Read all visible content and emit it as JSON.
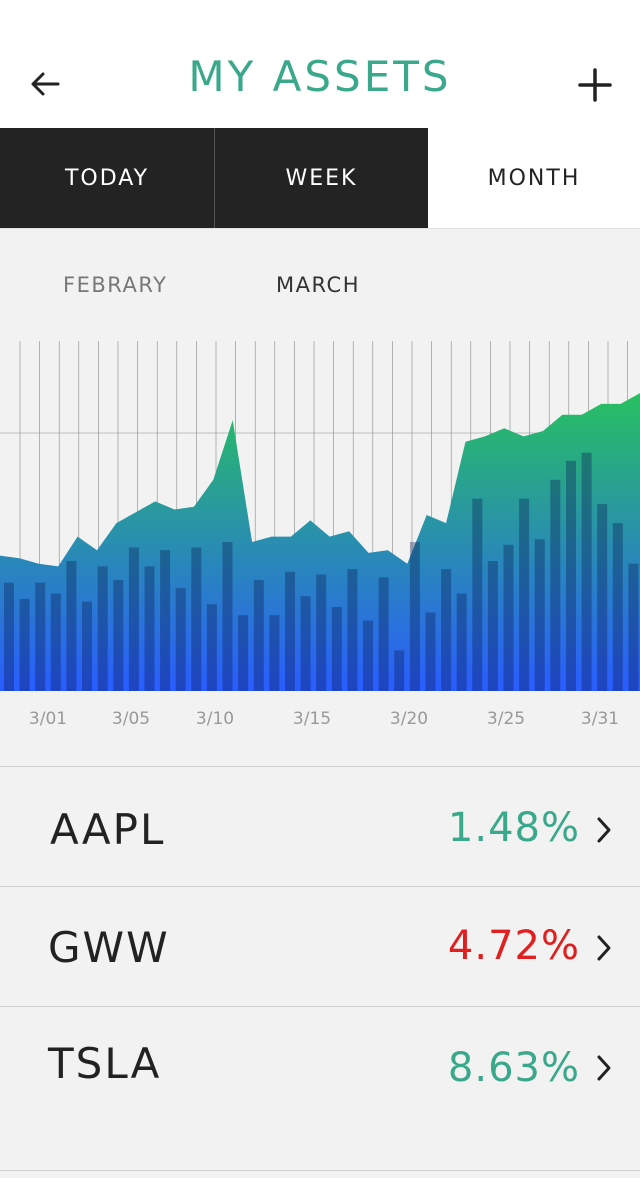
{
  "header": {
    "title": "MY ASSETS",
    "back_icon": "arrow-left-icon",
    "add_icon": "plus-icon"
  },
  "tabs": [
    {
      "label": "TODAY",
      "active": false
    },
    {
      "label": "WEEK",
      "active": false
    },
    {
      "label": "MONTH",
      "active": true
    }
  ],
  "months": {
    "prev": "FEBRARY",
    "current": "MARCH"
  },
  "colors": {
    "accent": "#3aa88b",
    "positive": "#3aa88b",
    "negative": "#e02020",
    "area_top": "#2ab56a",
    "area_bottom": "#2a5cff"
  },
  "chart_data": {
    "type": "area",
    "x_tick_labels": [
      "3/01",
      "3/05",
      "3/10",
      "3/15",
      "3/20",
      "3/25",
      "3/31"
    ],
    "area_values": [
      50,
      49,
      47,
      46,
      57,
      52,
      62,
      66,
      70,
      67,
      68,
      78,
      100,
      55,
      57,
      57,
      63,
      57,
      59,
      51,
      52,
      47,
      65,
      62,
      92,
      94,
      97,
      94,
      96,
      102,
      102,
      106,
      106,
      110
    ],
    "bar_values": [
      40,
      34,
      40,
      36,
      48,
      33,
      46,
      41,
      53,
      46,
      52,
      38,
      53,
      32,
      55,
      28,
      41,
      28,
      44,
      35,
      43,
      31,
      45,
      26,
      42,
      15,
      55,
      29,
      45,
      36,
      71,
      48,
      54,
      71,
      56,
      78,
      85,
      88,
      69,
      62,
      47
    ]
  },
  "assets": [
    {
      "ticker": "AAPL",
      "change": "1.48%",
      "direction": "up"
    },
    {
      "ticker": "GWW",
      "change": "4.72%",
      "direction": "down"
    },
    {
      "ticker": "TSLA",
      "change": "8.63%",
      "direction": "up"
    }
  ]
}
